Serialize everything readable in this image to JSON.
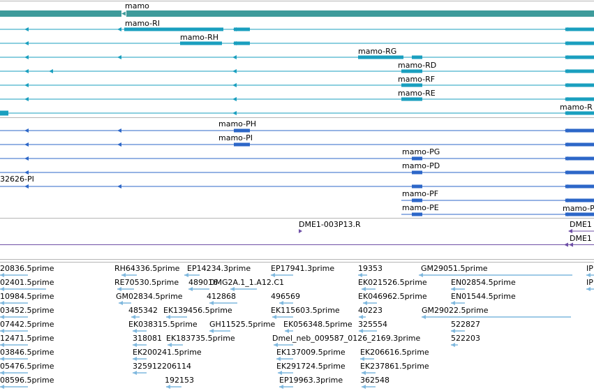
{
  "colors": {
    "gene": "#3e9b9b",
    "transcriptA": "#1a9fbf",
    "transcriptB": "#2d67c8",
    "cdna": "#6e4fa6",
    "est": "#7fb8de",
    "divider": "#b5b5b5"
  },
  "tracks": [
    {
      "name": "gene",
      "label": "mamo",
      "label_offset": 0,
      "color": "#3e9b9b",
      "lines": [
        {
          "label": "mamo",
          "x1": 0,
          "x2": 851,
          "strand": "-",
          "exons": [
            [
              0,
              173,
              9
            ],
            [
              181,
              851,
              9
            ]
          ]
        }
      ]
    },
    {
      "name": "transcripts-a",
      "color": "#1a9fbf",
      "lines": [
        {
          "label": "mamo-RI",
          "x1": 0,
          "x2": 851,
          "strand": "-",
          "exons": [
            [
              178,
              320,
              5
            ],
            [
              335,
              358,
              5
            ],
            [
              810,
              851,
              5
            ]
          ],
          "arrows": [
            35,
            168
          ]
        },
        {
          "label": "mamo-RH",
          "x1": 0,
          "x2": 851,
          "strand": "-",
          "exons": [
            [
              258,
              318,
              5
            ],
            [
              335,
              358,
              5
            ],
            [
              810,
              851,
              5
            ]
          ],
          "arrows": [
            35
          ]
        },
        {
          "label": "mamo-RG",
          "x1": 0,
          "x2": 851,
          "strand": "-",
          "exons": [
            [
              513,
              578,
              5
            ],
            [
              590,
              605,
              5
            ],
            [
              810,
              851,
              5
            ]
          ],
          "arrows": [
            35,
            168
          ]
        },
        {
          "label": "mamo-RD",
          "x1": 0,
          "x2": 851,
          "strand": "-",
          "exons": [
            [
              575,
              605,
              5
            ],
            [
              810,
              851,
              5
            ]
          ],
          "arrows": [
            35,
            70
          ]
        },
        {
          "label": "mamo-RF",
          "x1": 0,
          "x2": 851,
          "strand": "-",
          "exons": [
            [
              575,
              605,
              5
            ],
            [
              810,
              851,
              5
            ]
          ],
          "arrows": [
            35
          ]
        },
        {
          "label": "mamo-RE",
          "x1": 0,
          "x2": 851,
          "strand": "-",
          "exons": [
            [
              575,
              605,
              5
            ],
            [
              810,
              851,
              5
            ]
          ],
          "arrows": [
            35
          ]
        },
        {
          "label": "mamo-R",
          "x1": 0,
          "x2": 851,
          "strand": "-",
          "exons": [
            [
              0,
              12,
              5
            ],
            [
              810,
              851,
              5
            ]
          ],
          "arrows": []
        }
      ]
    },
    {
      "name": "transcripts-b",
      "color": "#2d67c8",
      "lines": [
        {
          "label": "mamo-PH",
          "x1": 0,
          "x2": 851,
          "strand": "-",
          "exons": [
            [
              335,
              358,
              5
            ],
            [
              810,
              851,
              5
            ]
          ],
          "arrows": [
            35,
            168
          ]
        },
        {
          "label": "mamo-PI",
          "x1": 0,
          "x2": 851,
          "strand": "-",
          "exons": [
            [
              335,
              358,
              5
            ],
            [
              810,
              851,
              5
            ]
          ],
          "arrows": [
            35,
            168
          ]
        },
        {
          "label": "mamo-PG",
          "x1": 0,
          "x2": 851,
          "strand": "-",
          "exons": [
            [
              590,
              605,
              5
            ],
            [
              810,
              851,
              5
            ]
          ],
          "arrows": [
            35
          ]
        },
        {
          "label": "mamo-PD",
          "x1": 0,
          "x2": 851,
          "strand": "-",
          "exons": [
            [
              590,
              605,
              5
            ],
            [
              810,
              851,
              5
            ]
          ],
          "arrows": [
            35
          ]
        },
        {
          "label": "32626-PI",
          "x1": 0,
          "x2": 851,
          "strand": "-",
          "exons": [
            [
              590,
              605,
              5
            ],
            [
              810,
              851,
              5
            ]
          ],
          "arrows": [
            35,
            168
          ],
          "left_label": true
        },
        {
          "label": "mamo-PF",
          "x1": 575,
          "x2": 851,
          "strand": "-",
          "exons": [
            [
              590,
              605,
              5
            ],
            [
              810,
              851,
              5
            ]
          ],
          "arrows": []
        },
        {
          "label": "mamo-PE",
          "x1": 575,
          "x2": 851,
          "strand": "-",
          "exons": [
            [
              590,
              605,
              5
            ],
            [
              810,
              851,
              5
            ]
          ],
          "arrows": []
        },
        {
          "label": "mamo-P",
          "x1": 806,
          "x2": 851,
          "strand": "-",
          "exons": [
            [
              810,
              851,
              5
            ]
          ],
          "arrows": []
        }
      ]
    },
    {
      "name": "cdna",
      "color": "#6e4fa6",
      "lines": [
        {
          "label": "DME1-003P13.R",
          "label_x": 428
        },
        {
          "label": "DME1",
          "label_x": 816
        },
        {
          "label": "DME1",
          "label_x": 816
        }
      ]
    }
  ],
  "est_labels": [
    "20836.5prime",
    "RH64336.5prime",
    "EP14234.3prime",
    "EP17941.3prime",
    "19353",
    "GM29051.5prime",
    "IP",
    "02401.5prime",
    "RE70530.5prime",
    "489016",
    "DMG2A.1_1.A12.C1",
    "EK021526.5prime",
    "EN02854.5prime",
    "IP",
    "10984.5prime",
    "GM02834.5prime",
    "412868",
    "496569",
    "EK046962.5prime",
    "EN01544.5prime",
    "03452.5prime",
    "485342",
    "EK139456.5prime",
    "EK115603.5prime",
    "40223",
    "GM29022.5prime",
    "07442.5prime",
    "EK038315.5prime",
    "GH11525.5prime",
    "EK056348.5prime",
    "325554",
    "522827",
    "12471.5prime",
    "318081",
    "EK183735.5prime",
    "Dmel_neb_009587_0126_2169.3prime",
    "522203",
    "03846.5prime",
    "EK200241.5prime",
    "EK137009.5prime",
    "EK206616.5prime",
    "05476.5prime",
    "325912206114",
    "EK291724.5prime",
    "EK237861.5prime",
    "08596.5prime",
    "192153",
    "EP19963.3prime",
    "362548"
  ]
}
